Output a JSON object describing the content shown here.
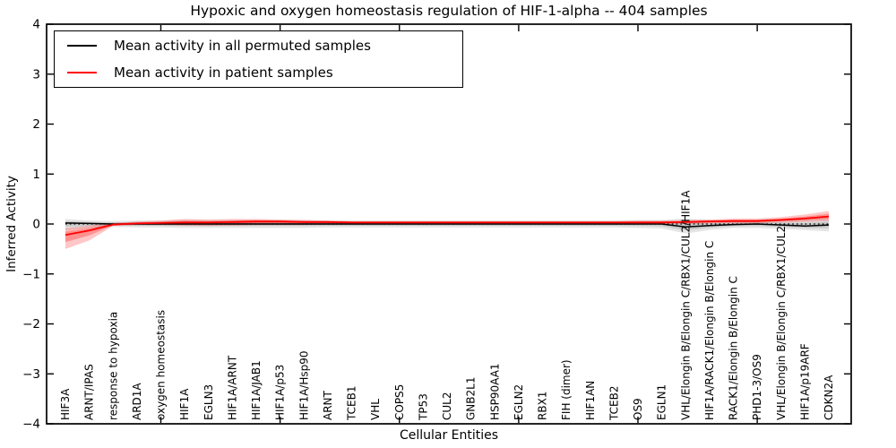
{
  "chart_data": {
    "type": "line",
    "title": "Hypoxic and oxygen homeostasis regulation of HIF-1-alpha -- 404 samples",
    "xlabel": "Cellular Entities",
    "ylabel": "Inferred Activity",
    "ylim": [
      -4,
      4
    ],
    "yticks": [
      4,
      3,
      2,
      1,
      0,
      -1,
      -2,
      -3,
      -4
    ],
    "x_major_tick_indices": [
      4,
      9,
      14,
      19,
      24,
      29
    ],
    "grid": false,
    "legend_position": "upper left",
    "zero_reference_line": {
      "y": 0,
      "style": "dotted",
      "color": "#000000"
    },
    "categories": [
      "HIF3A",
      "ARNT/IPAS",
      "response to hypoxia",
      "ARD1A",
      "oxygen homeostasis",
      "HIF1A",
      "EGLN3",
      "HIF1A/ARNT",
      "HIF1A/JAB1",
      "HIF1A/p53",
      "HIF1A/Hsp90",
      "ARNT",
      "TCEB1",
      "VHL",
      "COPS5",
      "TP53",
      "CUL2",
      "GNB2L1",
      "HSP90AA1",
      "EGLN2",
      "RBX1",
      "FIH (dimer)",
      "HIF1AN",
      "TCEB2",
      "OS9",
      "EGLN1",
      "VHL/Elongin B/Elongin C/RBX1/CUL2/HIF1A",
      "HIF1A/RACK1/Elongin B/Elongin C",
      "RACK1/Elongin B/Elongin C",
      "PHD1-3/OS9",
      "VHL/Elongin B/Elongin C/RBX1/CUL2",
      "HIF1A/p19ARF",
      "CDKN2A"
    ],
    "series": [
      {
        "name": "Mean activity in all permuted samples",
        "color": "#000000",
        "band_opacity": 0.1,
        "line_width": 1.5,
        "values": [
          0.02,
          0.01,
          0,
          0,
          0,
          0,
          0,
          0,
          0,
          0,
          0,
          0,
          0,
          0,
          0,
          0,
          0,
          0,
          0,
          0,
          0,
          0,
          0,
          0,
          0,
          0,
          -0.06,
          -0.03,
          -0.01,
          0,
          -0.02,
          -0.04,
          -0.02
        ],
        "band_lower": [
          -0.13,
          -0.08,
          -0.06,
          -0.07,
          -0.07,
          -0.08,
          -0.08,
          -0.08,
          -0.08,
          -0.08,
          -0.08,
          -0.07,
          -0.07,
          -0.07,
          -0.07,
          -0.07,
          -0.07,
          -0.07,
          -0.07,
          -0.07,
          -0.07,
          -0.07,
          -0.07,
          -0.07,
          -0.08,
          -0.09,
          -0.19,
          -0.12,
          -0.08,
          -0.08,
          -0.1,
          -0.12,
          -0.15
        ],
        "band_upper": [
          0.1,
          0.07,
          0.06,
          0.07,
          0.07,
          0.08,
          0.08,
          0.08,
          0.08,
          0.08,
          0.08,
          0.07,
          0.07,
          0.07,
          0.07,
          0.07,
          0.07,
          0.07,
          0.07,
          0.07,
          0.07,
          0.07,
          0.07,
          0.07,
          0.08,
          0.08,
          0.11,
          0.08,
          0.07,
          0.07,
          0.08,
          0.09,
          0.12
        ]
      },
      {
        "name": "Mean activity in patient samples",
        "color": "#ff0000",
        "band_opacity": 0.22,
        "line_width": 1.8,
        "values": [
          -0.22,
          -0.13,
          -0.01,
          0.01,
          0.02,
          0.03,
          0.03,
          0.04,
          0.05,
          0.05,
          0.04,
          0.04,
          0.03,
          0.03,
          0.03,
          0.03,
          0.03,
          0.03,
          0.03,
          0.03,
          0.03,
          0.03,
          0.03,
          0.03,
          0.03,
          0.03,
          0.04,
          0.05,
          0.06,
          0.06,
          0.08,
          0.11,
          0.15
        ],
        "band_lower": [
          -0.5,
          -0.33,
          -0.04,
          -0.02,
          -0.02,
          -0.03,
          -0.04,
          -0.03,
          -0.02,
          -0.02,
          -0.02,
          -0.01,
          -0.01,
          -0.01,
          -0.01,
          -0.01,
          -0.01,
          -0.01,
          -0.01,
          -0.01,
          -0.01,
          -0.01,
          -0.01,
          -0.01,
          -0.01,
          0,
          0,
          0.01,
          0.01,
          0.01,
          0.03,
          0.04,
          0.06
        ],
        "band_upper": [
          -0.08,
          -0.03,
          0.02,
          0.05,
          0.07,
          0.1,
          0.09,
          0.1,
          0.1,
          0.09,
          0.08,
          0.07,
          0.06,
          0.06,
          0.06,
          0.06,
          0.06,
          0.06,
          0.06,
          0.06,
          0.06,
          0.06,
          0.06,
          0.06,
          0.07,
          0.07,
          0.08,
          0.09,
          0.11,
          0.11,
          0.14,
          0.19,
          0.26
        ]
      }
    ]
  }
}
